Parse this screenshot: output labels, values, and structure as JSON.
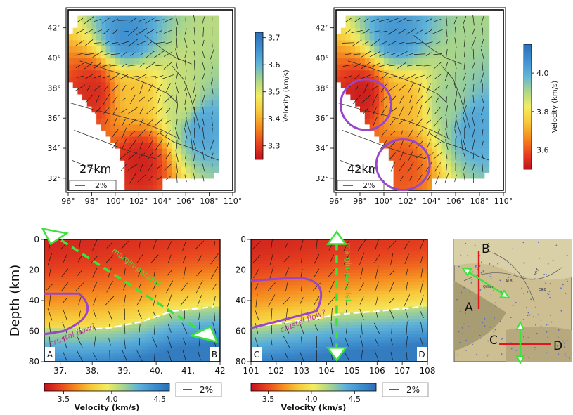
{
  "colors": {
    "scale": [
      "#c1121f",
      "#e8431f",
      "#f58a1f",
      "#f7c83a",
      "#f4ec61",
      "#aad68a",
      "#5fb3d9",
      "#3f8fcf",
      "#2c6fb6"
    ],
    "annotation_purple": "#9b45c8",
    "annotation_green": "#3ee23e",
    "section_line_red": "#e0171b",
    "moho_white": "#ffffff"
  },
  "chart_data": [
    {
      "type": "heatmap",
      "panel": "map-27km",
      "depth_label": "27km",
      "xticks": [
        "96°",
        "98°",
        "100°",
        "102°",
        "104°",
        "106°",
        "108°",
        "110°"
      ],
      "xlim": [
        96,
        110
      ],
      "yticks": [
        "42°",
        "40°",
        "38°",
        "36°",
        "34°",
        "32°"
      ],
      "ylim": [
        31.2,
        43.2
      ],
      "colorbar": {
        "label": "Velocity (km/s)",
        "ticks": [
          "3.7",
          "3.6",
          "3.5",
          "3.4",
          "3.3"
        ],
        "range": [
          3.25,
          3.72
        ]
      },
      "anisotropy_scale": "2%",
      "anomalies": [
        {
          "lon": 98.2,
          "lat": 37.8,
          "velocity": 3.28
        },
        {
          "lon": 102.2,
          "lat": 33.2,
          "velocity": 3.27
        },
        {
          "lon": 101.5,
          "lat": 37.5,
          "velocity": 3.42
        },
        {
          "lon": 105.8,
          "lat": 37.0,
          "velocity": 3.52
        },
        {
          "lon": 107.3,
          "lat": 35.5,
          "velocity": 3.63
        },
        {
          "lon": 101.0,
          "lat": 41.5,
          "velocity": 3.66
        }
      ]
    },
    {
      "type": "heatmap",
      "panel": "map-42km",
      "depth_label": "42km",
      "xticks": [
        "96°",
        "98°",
        "100°",
        "102°",
        "104°",
        "106°",
        "108°",
        "110°"
      ],
      "xlim": [
        96,
        110
      ],
      "yticks": [
        "42°",
        "40°",
        "38°",
        "36°",
        "34°",
        "32°"
      ],
      "ylim": [
        31.2,
        43.2
      ],
      "colorbar": {
        "label": "Velocity (km/s)",
        "ticks": [
          "4.0",
          "3.8",
          "3.6"
        ],
        "range": [
          3.5,
          4.15
        ]
      },
      "anisotropy_scale": "2%",
      "anomalies": [
        {
          "lon": 98.3,
          "lat": 37.6,
          "velocity": 3.52
        },
        {
          "lon": 101.5,
          "lat": 33.0,
          "velocity": 3.6
        },
        {
          "lon": 101.5,
          "lat": 37.0,
          "velocity": 3.72
        },
        {
          "lon": 105.5,
          "lat": 37.0,
          "velocity": 3.92
        },
        {
          "lon": 107.5,
          "lat": 35.5,
          "velocity": 4.02
        },
        {
          "lon": 101.0,
          "lat": 41.5,
          "velocity": 4.05
        }
      ]
    },
    {
      "type": "heatmap",
      "panel": "section-AB",
      "ylabel": "Depth (km)",
      "xticks": [
        "37.",
        "38.",
        "39.",
        "40.",
        "41.",
        "42"
      ],
      "xlim": [
        36.5,
        42
      ],
      "yticks": [
        "0",
        "20",
        "40",
        "60",
        "80"
      ],
      "ylim": [
        0,
        80
      ],
      "end_labels": [
        "A",
        "B"
      ],
      "annotations": [
        "margin-parallel",
        "crustal flow?"
      ],
      "moho_depth": [
        [
          37.5,
          59
        ],
        [
          38.5,
          58
        ],
        [
          39.5,
          54
        ],
        [
          40.5,
          47
        ],
        [
          41.8,
          44
        ]
      ],
      "colorbar": {
        "label": "Velocity (km/s)",
        "ticks": [
          "3.5",
          "4.0",
          "4.5"
        ],
        "range": [
          3.3,
          4.6
        ]
      },
      "anisotropy_scale": "2%"
    },
    {
      "type": "heatmap",
      "panel": "section-CD",
      "xticks": [
        "101",
        "102",
        "103",
        "104",
        "105",
        "106",
        "107",
        "108"
      ],
      "xlim": [
        101,
        108
      ],
      "yticks": [
        "0",
        "20",
        "40",
        "60",
        "80"
      ],
      "ylim": [
        0,
        80
      ],
      "end_labels": [
        "C",
        "D"
      ],
      "annotations": [
        "margin-parallel",
        "crustal flow?"
      ],
      "moho_depth": [
        [
          101.2,
          57
        ],
        [
          102.5,
          54
        ],
        [
          103.5,
          52
        ],
        [
          104.5,
          49
        ],
        [
          106,
          47
        ],
        [
          107.8,
          44
        ]
      ],
      "colorbar": {
        "label": "Velocity (km/s)",
        "ticks": [
          "3.5",
          "4.0",
          "4.5"
        ],
        "range": [
          3.3,
          4.75
        ]
      },
      "anisotropy_scale": "2%"
    }
  ],
  "inset": {
    "labels": [
      "B",
      "A",
      "C",
      "D",
      "ALB",
      "Qilian",
      "HYF",
      "ORB"
    ]
  }
}
